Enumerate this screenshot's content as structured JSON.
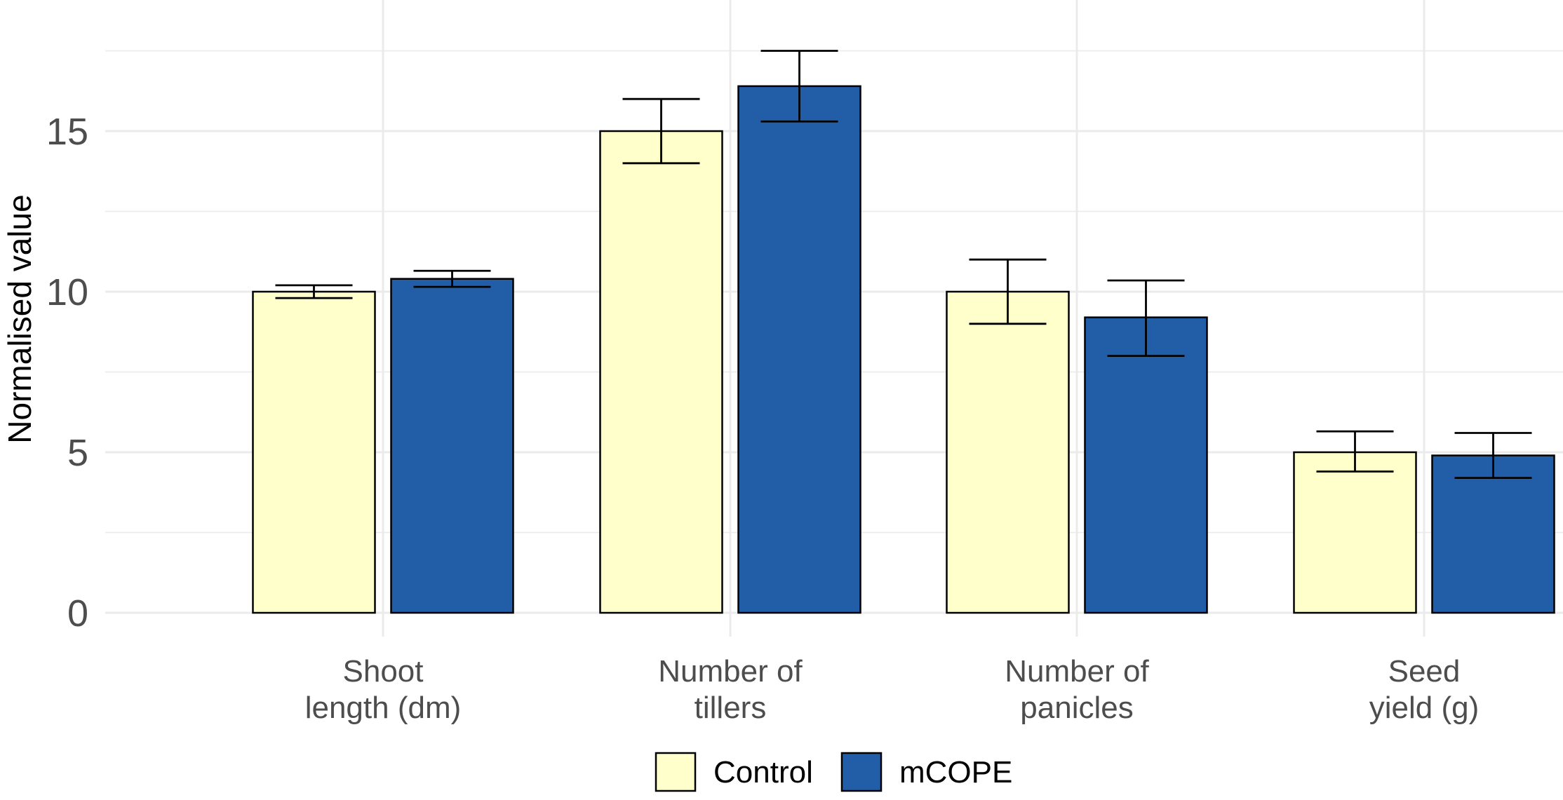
{
  "chart_data": {
    "type": "bar",
    "title": "",
    "xlabel": "",
    "ylabel": "Normalised value",
    "ylim": [
      0,
      17.7
    ],
    "yticks": [
      0,
      5,
      10,
      15
    ],
    "grid": true,
    "legend_position": "bottom",
    "categories": [
      [
        "Shoot",
        "length (dm)"
      ],
      [
        "Number of",
        "tillers"
      ],
      [
        "Number of",
        "panicles"
      ],
      [
        "Seed",
        "yield (g)"
      ]
    ],
    "series": [
      {
        "name": "Control",
        "color": "#ffffcc",
        "values": [
          10.0,
          15.0,
          10.0,
          5.0
        ],
        "error_low": [
          9.8,
          14.0,
          9.0,
          4.4
        ],
        "error_high": [
          10.2,
          16.0,
          11.0,
          5.65
        ]
      },
      {
        "name": "mCOPE",
        "color": "#225ea8",
        "values": [
          10.4,
          16.4,
          9.2,
          4.9
        ],
        "error_low": [
          10.15,
          15.3,
          8.0,
          4.2
        ],
        "error_high": [
          10.65,
          17.5,
          10.35,
          5.6
        ]
      }
    ]
  }
}
